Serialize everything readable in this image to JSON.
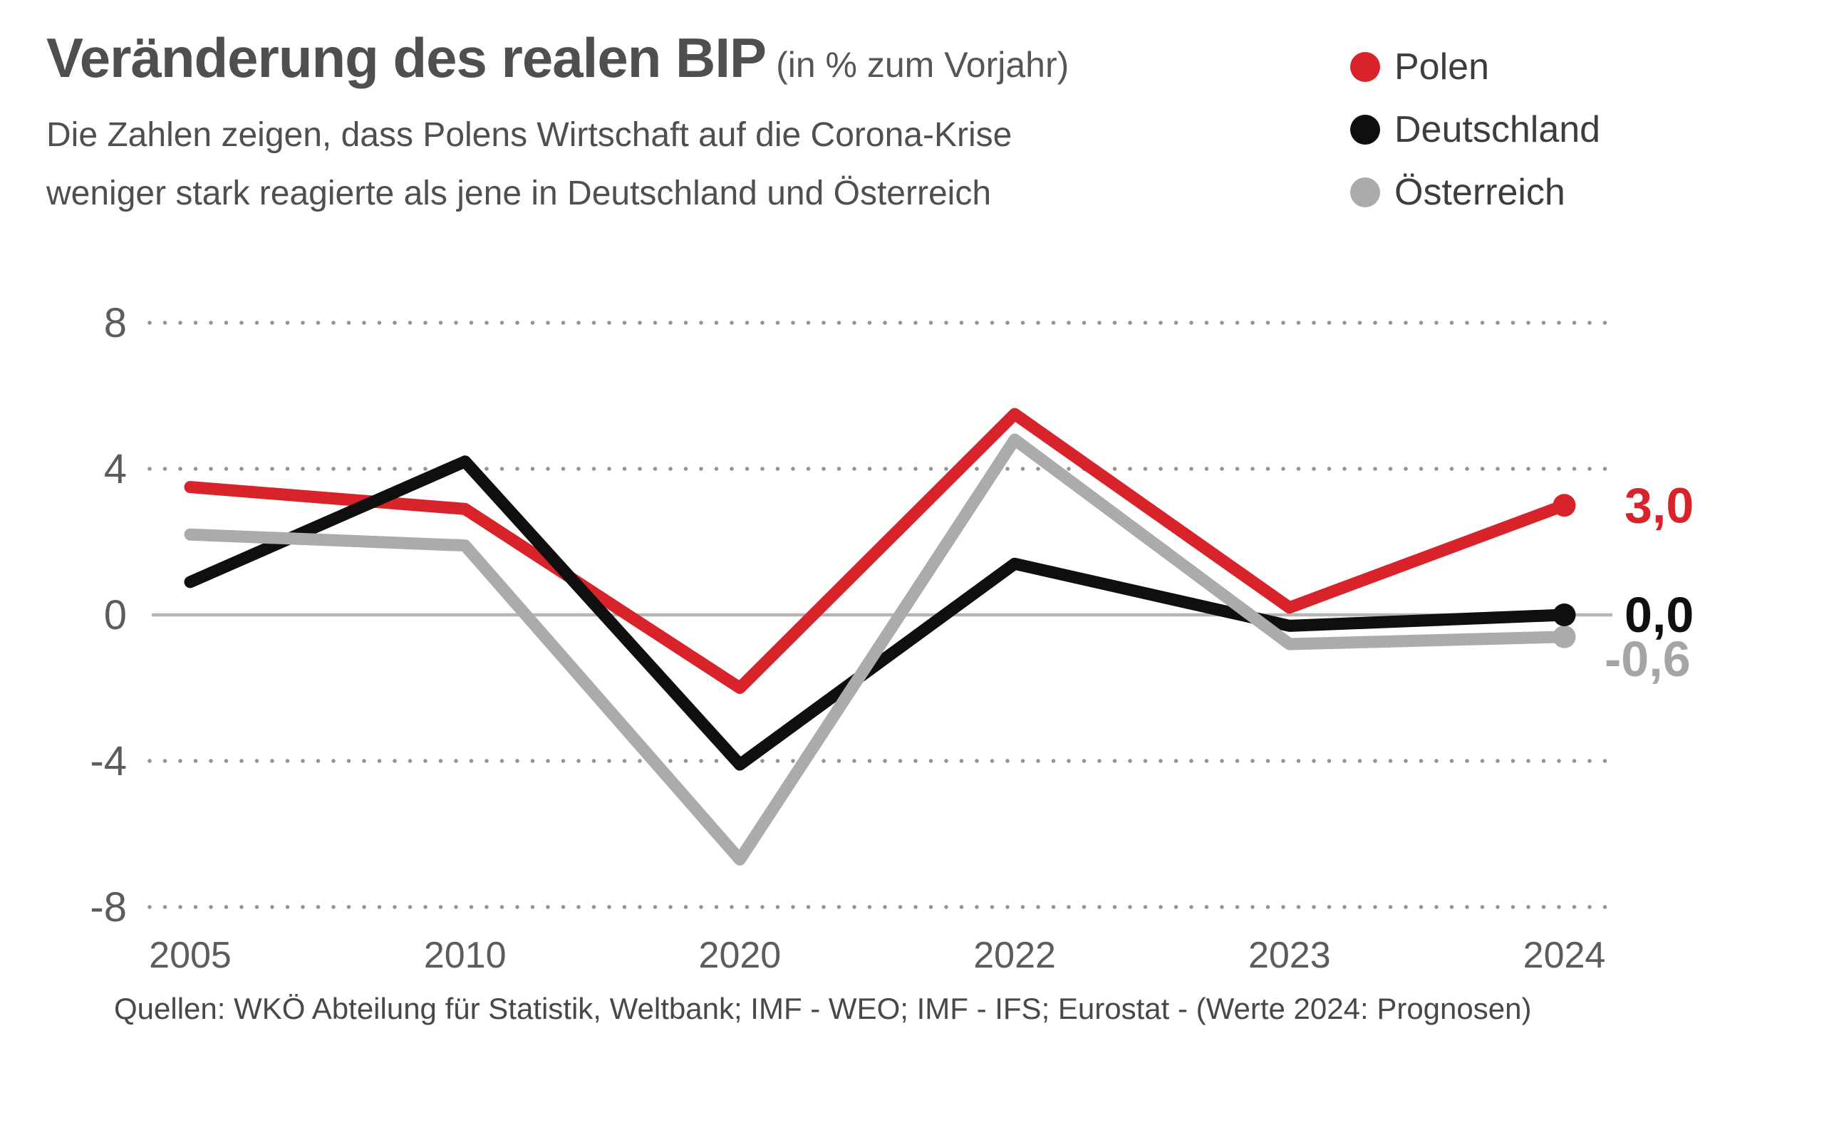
{
  "header": {
    "title": "Veränderung des realen BIP",
    "title_suffix": "(in % zum Vorjahr)",
    "subtitle_line1": "Die Zahlen zeigen, dass Polens Wirtschaft auf die Corona-Krise",
    "subtitle_line2": "weniger stark reagierte als jene in Deutschland und Österreich"
  },
  "legend": {
    "items": [
      {
        "label": "Polen",
        "color": "#d8232a"
      },
      {
        "label": "Deutschland",
        "color": "#0f0f0f"
      },
      {
        "label": "Österreich",
        "color": "#ababab"
      }
    ]
  },
  "footer": {
    "source": "Quellen: WKÖ Abteilung für Statistik, Weltbank; IMF - WEO; IMF - IFS; Eurostat - (Werte 2024: Prognosen)"
  },
  "chart_data": {
    "type": "line",
    "title": "Veränderung des realen BIP (in % zum Vorjahr)",
    "categories": [
      "2005",
      "2010",
      "2020",
      "2022",
      "2023",
      "2024"
    ],
    "series": [
      {
        "name": "Polen",
        "color": "#d8232a",
        "values": [
          3.5,
          2.9,
          -2.0,
          5.5,
          0.2,
          3.0
        ],
        "end_label": "3,0",
        "end_label_color": "#d8232a"
      },
      {
        "name": "Deutschland",
        "color": "#0f0f0f",
        "values": [
          0.9,
          4.2,
          -4.1,
          1.4,
          -0.3,
          0.0
        ],
        "end_label": "0,0",
        "end_label_color": "#0f0f0f"
      },
      {
        "name": "Österreich",
        "color": "#ababab",
        "values": [
          2.2,
          1.9,
          -6.7,
          4.8,
          -0.8,
          -0.6
        ],
        "end_label": "-0,6",
        "end_label_color": "#a5a5a5"
      }
    ],
    "y_ticks": [
      "8",
      "4",
      "0",
      "-4",
      "-8"
    ],
    "ylim": [
      -8,
      8
    ],
    "grid": "dotted horizontal lines at 8, 4, -4, -8; solid gray zero line",
    "legend_position": "top-right",
    "note": "Werte 2024: Prognosen"
  }
}
